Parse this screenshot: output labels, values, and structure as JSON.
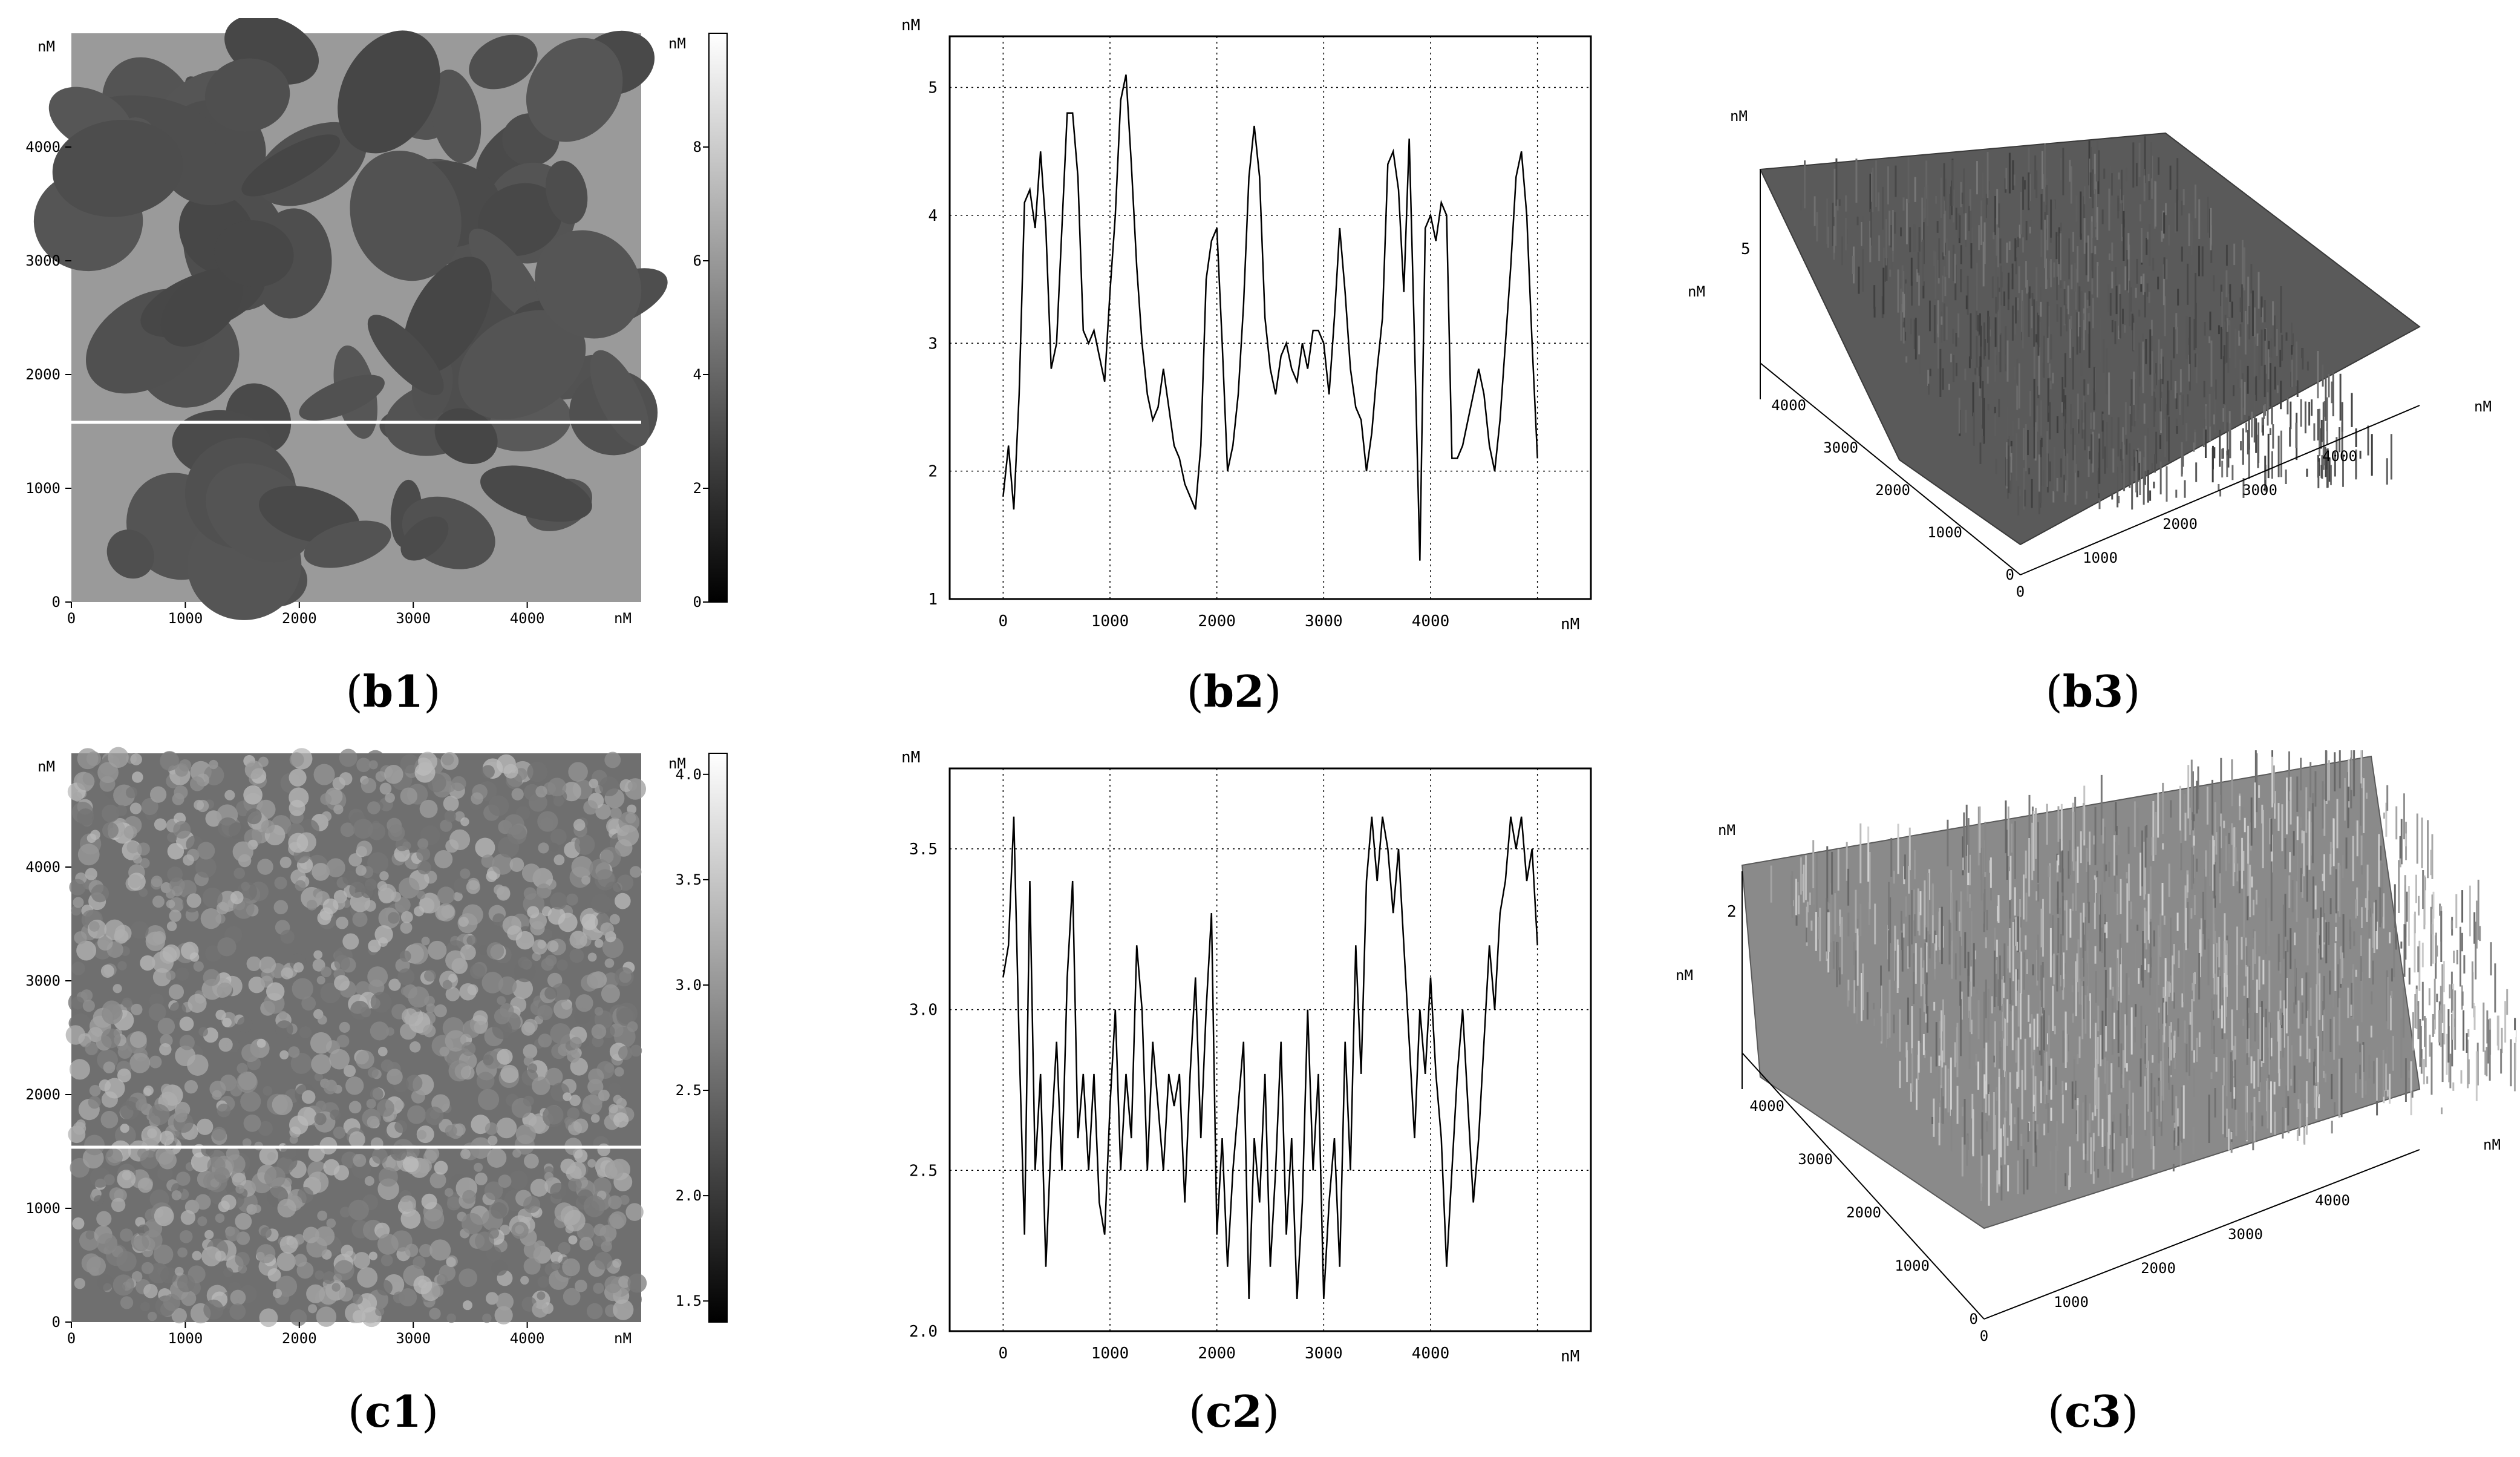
{
  "figure": {
    "panels": {
      "b1": {
        "caption_letter": "b1",
        "unit_y": "nM",
        "unit_x": "nM",
        "x_ticks": [
          "0",
          "1000",
          "2000",
          "3000",
          "4000"
        ],
        "y_ticks": [
          "0",
          "1000",
          "2000",
          "3000",
          "4000"
        ],
        "colorbar_unit": "nM",
        "colorbar_ticks": [
          "0",
          "2",
          "4",
          "6",
          "8"
        ]
      },
      "b2": {
        "caption_letter": "b2",
        "unit_y": "nM",
        "unit_x": "nM",
        "x_ticks": [
          "0",
          "1000",
          "2000",
          "3000",
          "4000"
        ],
        "y_ticks": [
          "1",
          "2",
          "3",
          "4",
          "5"
        ]
      },
      "b3": {
        "caption_letter": "b3",
        "z_unit": "nM",
        "z_value": "5",
        "side_unit": "nM",
        "right_unit": "nM",
        "left_ticks": [
          "0",
          "1000",
          "2000",
          "3000",
          "4000"
        ],
        "front_ticks": [
          "0",
          "1000",
          "2000",
          "3000",
          "4000"
        ]
      },
      "c1": {
        "caption_letter": "c1",
        "unit_y": "nM",
        "unit_x": "nM",
        "x_ticks": [
          "0",
          "1000",
          "2000",
          "3000",
          "4000"
        ],
        "y_ticks": [
          "0",
          "1000",
          "2000",
          "3000",
          "4000"
        ],
        "colorbar_unit": "nM",
        "colorbar_ticks": [
          "1.5",
          "2.0",
          "2.5",
          "3.0",
          "3.5",
          "4.0"
        ]
      },
      "c2": {
        "caption_letter": "c2",
        "unit_y": "nM",
        "unit_x": "nM",
        "x_ticks": [
          "0",
          "1000",
          "2000",
          "3000",
          "4000"
        ],
        "y_ticks": [
          "2.0",
          "2.5",
          "3.0",
          "3.5"
        ]
      },
      "c3": {
        "caption_letter": "c3",
        "z_unit": "nM",
        "z_value": "2",
        "side_unit": "nM",
        "right_unit": "nM",
        "left_ticks": [
          "0",
          "1000",
          "2000",
          "3000",
          "4000"
        ],
        "front_ticks": [
          "0",
          "1000",
          "2000",
          "3000",
          "4000"
        ]
      }
    }
  },
  "chart_data": [
    {
      "type": "line",
      "panel": "b2",
      "xlabel": "nM",
      "ylabel": "nM",
      "xlim": [
        -500,
        5500
      ],
      "ylim": [
        1,
        5.4
      ],
      "x_ticks": [
        0,
        1000,
        2000,
        3000,
        4000
      ],
      "y_ticks": [
        1,
        2,
        3,
        4,
        5
      ],
      "grid": true,
      "x": [
        0,
        50,
        100,
        150,
        200,
        250,
        300,
        350,
        400,
        450,
        500,
        550,
        600,
        650,
        700,
        750,
        800,
        850,
        900,
        950,
        1000,
        1050,
        1100,
        1150,
        1200,
        1250,
        1300,
        1350,
        1400,
        1450,
        1500,
        1550,
        1600,
        1650,
        1700,
        1750,
        1800,
        1850,
        1900,
        1950,
        2000,
        2050,
        2100,
        2150,
        2200,
        2250,
        2300,
        2350,
        2400,
        2450,
        2500,
        2550,
        2600,
        2650,
        2700,
        2750,
        2800,
        2850,
        2900,
        2950,
        3000,
        3050,
        3100,
        3150,
        3200,
        3250,
        3300,
        3350,
        3400,
        3450,
        3500,
        3550,
        3600,
        3650,
        3700,
        3750,
        3800,
        3850,
        3900,
        3950,
        4000,
        4050,
        4100,
        4150,
        4200,
        4250,
        4300,
        4350,
        4400,
        4450,
        4500,
        4550,
        4600,
        4650,
        4700,
        4750,
        4800,
        4850,
        4900,
        4950,
        5000
      ],
      "y": [
        1.8,
        2.2,
        1.7,
        2.6,
        4.1,
        4.2,
        3.9,
        4.5,
        3.9,
        2.8,
        3.0,
        3.9,
        4.8,
        4.8,
        4.3,
        3.1,
        3.0,
        3.1,
        2.9,
        2.7,
        3.4,
        4.0,
        4.9,
        5.1,
        4.4,
        3.6,
        3.0,
        2.6,
        2.4,
        2.5,
        2.8,
        2.5,
        2.2,
        2.1,
        1.9,
        1.8,
        1.7,
        2.2,
        3.5,
        3.8,
        3.9,
        3.0,
        2.0,
        2.2,
        2.6,
        3.3,
        4.3,
        4.7,
        4.3,
        3.2,
        2.8,
        2.6,
        2.9,
        3.0,
        2.8,
        2.7,
        3.0,
        2.8,
        3.1,
        3.1,
        3.0,
        2.6,
        3.2,
        3.9,
        3.4,
        2.8,
        2.5,
        2.4,
        2.0,
        2.3,
        2.8,
        3.2,
        4.4,
        4.5,
        4.2,
        3.4,
        4.6,
        3.0,
        1.3,
        3.9,
        4.0,
        3.8,
        4.1,
        4.0,
        2.1,
        2.1,
        2.2,
        2.4,
        2.6,
        2.8,
        2.6,
        2.2,
        2.0,
        2.4,
        3.0,
        3.6,
        4.3,
        4.5,
        4.0,
        3.0,
        2.1
      ]
    },
    {
      "type": "line",
      "panel": "c2",
      "xlabel": "nM",
      "ylabel": "nM",
      "xlim": [
        -500,
        5500
      ],
      "ylim": [
        2.0,
        3.75
      ],
      "x_ticks": [
        0,
        1000,
        2000,
        3000,
        4000
      ],
      "y_ticks": [
        2.0,
        2.5,
        3.0,
        3.5
      ],
      "grid": true,
      "x": [
        0,
        50,
        100,
        150,
        200,
        250,
        300,
        350,
        400,
        450,
        500,
        550,
        600,
        650,
        700,
        750,
        800,
        850,
        900,
        950,
        1000,
        1050,
        1100,
        1150,
        1200,
        1250,
        1300,
        1350,
        1400,
        1450,
        1500,
        1550,
        1600,
        1650,
        1700,
        1750,
        1800,
        1850,
        1900,
        1950,
        2000,
        2050,
        2100,
        2150,
        2200,
        2250,
        2300,
        2350,
        2400,
        2450,
        2500,
        2550,
        2600,
        2650,
        2700,
        2750,
        2800,
        2850,
        2900,
        2950,
        3000,
        3050,
        3100,
        3150,
        3200,
        3250,
        3300,
        3350,
        3400,
        3450,
        3500,
        3550,
        3600,
        3650,
        3700,
        3750,
        3800,
        3850,
        3900,
        3950,
        4000,
        4050,
        4100,
        4150,
        4200,
        4250,
        4300,
        4350,
        4400,
        4450,
        4500,
        4550,
        4600,
        4650,
        4700,
        4750,
        4800,
        4850,
        4900,
        4950,
        5000
      ],
      "y": [
        3.1,
        3.2,
        3.6,
        2.9,
        2.3,
        3.4,
        2.5,
        2.8,
        2.2,
        2.6,
        2.9,
        2.5,
        3.1,
        3.4,
        2.6,
        2.8,
        2.5,
        2.8,
        2.4,
        2.3,
        2.7,
        3.0,
        2.5,
        2.8,
        2.6,
        3.2,
        3.0,
        2.5,
        2.9,
        2.7,
        2.5,
        2.8,
        2.7,
        2.8,
        2.4,
        2.8,
        3.1,
        2.6,
        3.0,
        3.3,
        2.3,
        2.6,
        2.2,
        2.5,
        2.7,
        2.9,
        2.1,
        2.6,
        2.4,
        2.8,
        2.2,
        2.5,
        2.9,
        2.3,
        2.6,
        2.1,
        2.4,
        3.0,
        2.5,
        2.8,
        2.1,
        2.4,
        2.6,
        2.2,
        2.9,
        2.5,
        3.2,
        2.8,
        3.4,
        3.6,
        3.4,
        3.6,
        3.5,
        3.3,
        3.5,
        3.2,
        2.9,
        2.6,
        3.0,
        2.8,
        3.1,
        2.8,
        2.6,
        2.2,
        2.5,
        2.8,
        3.0,
        2.7,
        2.4,
        2.6,
        2.9,
        3.2,
        3.0,
        3.3,
        3.4,
        3.6,
        3.5,
        3.6,
        3.4,
        3.5,
        3.2
      ]
    }
  ]
}
